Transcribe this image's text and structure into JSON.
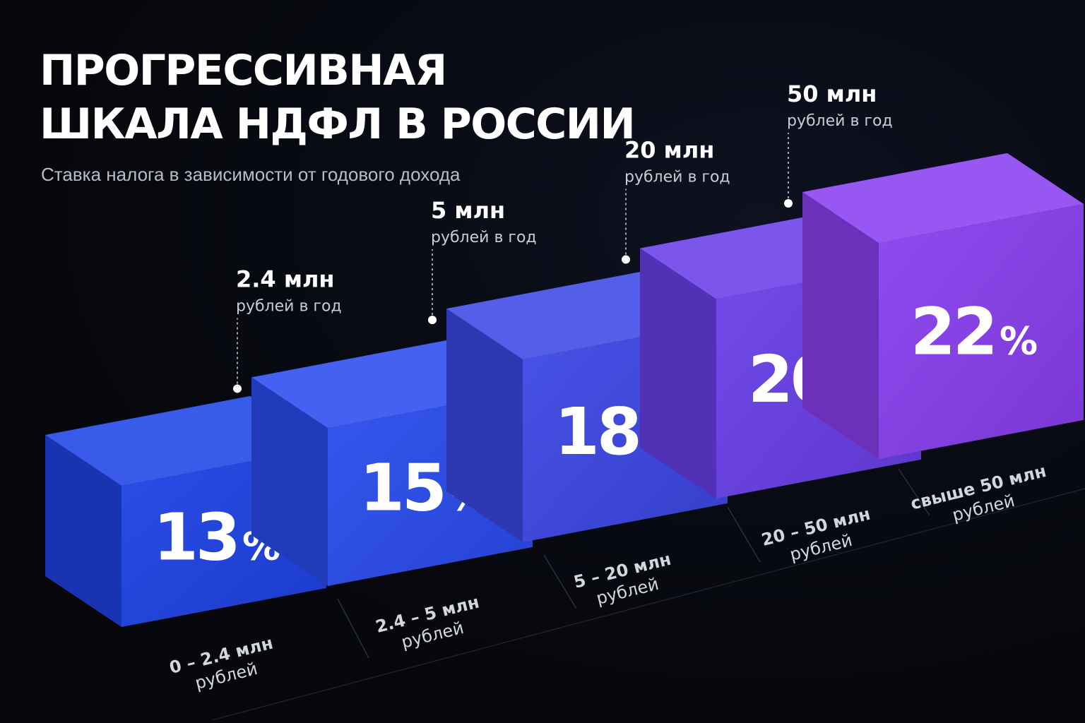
{
  "header": {
    "title_line1": "ПРОГРЕССИВНАЯ",
    "title_line2": "ШКАЛА НДФЛ В РОССИИ",
    "subtitle": "Ставка налога в зависимости от годового дохода"
  },
  "colors": {
    "background": "#06080d",
    "tier_colors": [
      "#1f43e6",
      "#2a4cef",
      "#3c48e6",
      "#6a3fe9",
      "#8a3ff0"
    ]
  },
  "chart_data": {
    "type": "bar",
    "categories": [
      "0 – 2.4 млн\nрублей",
      "2.4 – 5 млн\nрублей",
      "5 – 20 млн\nрублей",
      "20 – 50 млн\nрублей",
      "свыше 50 млн\nрублей"
    ],
    "values": [
      13,
      15,
      18,
      20,
      22
    ],
    "value_suffix": "%",
    "thresholds": [
      {
        "value": "2.4 млн",
        "unit": "рублей в год"
      },
      {
        "value": "5 млн",
        "unit": "рублей в год"
      },
      {
        "value": "20 млн",
        "unit": "рублей в год"
      },
      {
        "value": "50 млн",
        "unit": "рублей в год"
      }
    ]
  }
}
